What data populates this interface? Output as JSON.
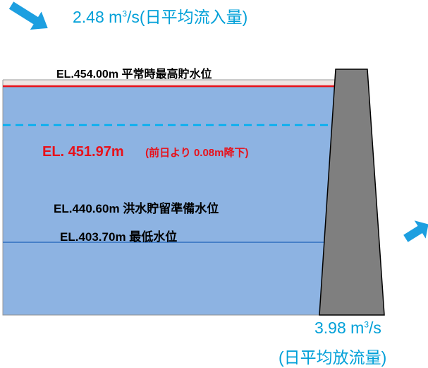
{
  "inflow": {
    "value": "2.48",
    "unit_m": "m",
    "unit_exp": "3",
    "unit_s": "/s",
    "note": "(日平均流入量)"
  },
  "outflow": {
    "value": "3.98",
    "unit_m": "m",
    "unit_exp": "3",
    "unit_s": "/s",
    "note": "(日平均放流量)"
  },
  "levels": {
    "normal_max": "EL.454.00m  平常時最高貯水位",
    "current": "EL. 451.97m",
    "current_change": "(前日より 0.08m降下)",
    "flood_storage": "EL.440.60m  洪水貯留準備水位",
    "minimum": "EL.403.70m  最低水位"
  },
  "colors": {
    "water": "#8db3e2",
    "normal_line": "#e8111a",
    "current_line": "#00b0f0",
    "min_line": "#2f6fc0",
    "dam": "#7f7f7f",
    "arrow": "#1d9fe0",
    "text_accent": "#00a0d8",
    "current_text": "#e8111a"
  }
}
